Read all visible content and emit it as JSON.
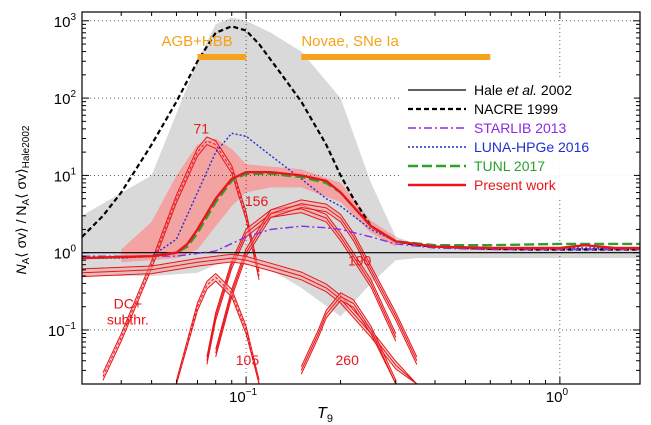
{
  "chart_data": {
    "type": "line",
    "title": "",
    "xlabel": "T",
    "xlabel_sub": "9",
    "ylabel_parts": [
      "N",
      "A",
      "⟨ σv⟩ / N",
      "A",
      "⟨ σv⟩",
      "Hale2002"
    ],
    "x_scale": "log",
    "y_scale": "log",
    "xlim": [
      0.03,
      1.8
    ],
    "ylim": [
      0.02,
      1300
    ],
    "grid": "dotted at decades",
    "legend_position": "right",
    "x_ticks": [
      {
        "value": 0.1,
        "base": "10",
        "exp": "−1"
      },
      {
        "value": 1,
        "base": "10",
        "exp": "0"
      }
    ],
    "y_ticks": [
      {
        "value": 0.1,
        "base": "10",
        "exp": "−1"
      },
      {
        "value": 1,
        "base": "10",
        "exp": "0"
      },
      {
        "value": 10,
        "base": "10",
        "exp": "1"
      },
      {
        "value": 100,
        "base": "10",
        "exp": "2"
      },
      {
        "value": 1000,
        "base": "10",
        "exp": "3"
      }
    ],
    "series": [
      {
        "name": "Hale et al. 2002",
        "name_pre": "Hale ",
        "name_ital": "et al.",
        "name_post": " 2002",
        "color": "#000000",
        "style": "solid",
        "x": [
          0.03,
          1.8
        ],
        "y": [
          1.0,
          1.0
        ]
      },
      {
        "name": "NACRE 1999",
        "color": "#000000",
        "style": "dash",
        "x": [
          0.03,
          0.035,
          0.04,
          0.05,
          0.06,
          0.07,
          0.08,
          0.09,
          0.1,
          0.11,
          0.13,
          0.15,
          0.18,
          0.2,
          0.22,
          0.25,
          0.3,
          0.35,
          0.4,
          0.5,
          0.6,
          0.8,
          1.0,
          1.3,
          1.8
        ],
        "y": [
          1.6,
          3,
          6,
          25,
          90,
          300,
          700,
          850,
          750,
          500,
          200,
          90,
          25,
          10,
          5,
          2.2,
          1.4,
          1.25,
          1.2,
          1.15,
          1.12,
          1.1,
          1.1,
          1.1,
          1.1
        ]
      },
      {
        "name": "STARLIB 2013",
        "color": "#8b2be2",
        "style": "dashdot",
        "x": [
          0.03,
          0.06,
          0.08,
          0.1,
          0.12,
          0.15,
          0.18,
          0.2,
          0.25,
          0.3,
          0.4,
          0.6,
          1.0,
          1.8
        ],
        "y": [
          0.9,
          0.9,
          1.05,
          1.6,
          2.0,
          2.2,
          2.1,
          2.0,
          1.6,
          1.3,
          1.15,
          1.1,
          1.1,
          1.1
        ]
      },
      {
        "name": "LUNA-HPGe 2016",
        "color": "#1f2fd6",
        "style": "dot",
        "x": [
          0.03,
          0.04,
          0.05,
          0.06,
          0.07,
          0.08,
          0.09,
          0.1,
          0.12,
          0.15,
          0.18,
          0.2,
          0.25,
          0.3,
          0.4,
          0.6,
          1.0,
          1.8
        ],
        "y": [
          0.85,
          0.85,
          0.9,
          1.5,
          6,
          20,
          35,
          32,
          18,
          9,
          5,
          4,
          2,
          1.4,
          1.2,
          1.15,
          1.15,
          1.15
        ]
      },
      {
        "name": "TUNL 2017",
        "color": "#2ca02c",
        "style": "longdash",
        "x": [
          0.03,
          0.05,
          0.06,
          0.065,
          0.07,
          0.08,
          0.09,
          0.1,
          0.12,
          0.15,
          0.18,
          0.2,
          0.25,
          0.3,
          0.4,
          0.6,
          1.0,
          1.8
        ],
        "y": [
          0.85,
          0.9,
          1.0,
          1.2,
          1.8,
          4.5,
          8.5,
          10.5,
          10.5,
          9.5,
          8,
          6,
          2.2,
          1.4,
          1.25,
          1.25,
          1.3,
          1.3
        ]
      },
      {
        "name": "Present work",
        "color": "#e8161b",
        "style": "solid",
        "x": [
          0.03,
          0.04,
          0.05,
          0.06,
          0.065,
          0.07,
          0.08,
          0.09,
          0.1,
          0.12,
          0.15,
          0.18,
          0.2,
          0.25,
          0.3,
          0.4,
          0.6,
          1.0,
          1.2,
          1.5,
          1.8
        ],
        "y": [
          0.85,
          0.88,
          0.9,
          1.0,
          1.3,
          2.0,
          5,
          9,
          11,
          11,
          10,
          8.5,
          6,
          2.2,
          1.4,
          1.2,
          1.15,
          1.15,
          1.25,
          1.15,
          1.15
        ]
      }
    ],
    "components": [
      {
        "label": "71",
        "x": [
          0.035,
          0.04,
          0.05,
          0.06,
          0.07,
          0.075,
          0.08,
          0.09,
          0.1,
          0.11
        ],
        "y": [
          0.025,
          0.08,
          0.7,
          5,
          20,
          28,
          25,
          12,
          3,
          0.5
        ]
      },
      {
        "label": "156",
        "x": [
          0.075,
          0.08,
          0.09,
          0.1,
          0.12,
          0.15,
          0.18,
          0.2,
          0.25,
          0.3
        ],
        "y": [
          0.04,
          0.15,
          0.7,
          1.8,
          3.2,
          3.7,
          2.8,
          1.6,
          0.4,
          0.08
        ]
      },
      {
        "label": "190",
        "x": [
          0.08,
          0.09,
          0.1,
          0.12,
          0.15,
          0.18,
          0.2,
          0.22,
          0.25,
          0.3,
          0.35
        ],
        "y": [
          0.05,
          0.3,
          1.0,
          3.2,
          4.3,
          3.8,
          2.8,
          1.6,
          0.6,
          0.15,
          0.04
        ]
      },
      {
        "label": "DC+ subthr.",
        "x": [
          0.03,
          0.05,
          0.07,
          0.09,
          0.1,
          0.12,
          0.15,
          0.18,
          0.2,
          0.25,
          0.3,
          0.35
        ],
        "y": [
          0.55,
          0.6,
          0.75,
          0.85,
          0.8,
          0.65,
          0.5,
          0.35,
          0.25,
          0.09,
          0.035,
          0.015
        ]
      },
      {
        "label": "105",
        "x": [
          0.06,
          0.07,
          0.075,
          0.08,
          0.09,
          0.1,
          0.11
        ],
        "y": [
          0.02,
          0.2,
          0.38,
          0.48,
          0.3,
          0.1,
          0.02
        ]
      },
      {
        "label": "260",
        "x": [
          0.15,
          0.17,
          0.18,
          0.2,
          0.22,
          0.25,
          0.3
        ],
        "y": [
          0.03,
          0.09,
          0.16,
          0.27,
          0.22,
          0.1,
          0.02
        ]
      }
    ],
    "bands": [
      {
        "color": "#d9d9d9",
        "x": [
          0.03,
          0.05,
          0.07,
          0.08,
          0.09,
          0.1,
          0.12,
          0.15,
          0.2,
          0.25,
          0.3,
          0.35,
          0.4,
          0.6,
          1.0,
          1.8
        ],
        "low": [
          0.5,
          0.5,
          0.55,
          0.7,
          0.8,
          0.8,
          0.6,
          0.35,
          0.15,
          0.4,
          0.8,
          0.85,
          0.85,
          0.85,
          0.85,
          0.85
        ],
        "high": [
          3,
          10,
          300,
          900,
          1100,
          1000,
          700,
          400,
          100,
          8,
          1.6,
          1.3,
          1.2,
          1.15,
          1.15,
          1.15
        ]
      },
      {
        "color": "#f4a3a3",
        "x": [
          0.04,
          0.05,
          0.06,
          0.07,
          0.08,
          0.09,
          0.1,
          0.12,
          0.15,
          0.2,
          0.25,
          0.3
        ],
        "low": [
          0.75,
          0.8,
          0.85,
          1.1,
          2.2,
          4,
          6,
          7,
          7,
          4.5,
          1.8,
          1.2
        ],
        "high": [
          1.1,
          2.5,
          10,
          25,
          30,
          22,
          14,
          13,
          12,
          8,
          2.6,
          1.6
        ]
      }
    ],
    "annotations": [
      {
        "text": "AGB+HBB",
        "range": [
          0.07,
          0.1
        ],
        "bar_y": 300,
        "color": "#f5a31a"
      },
      {
        "text": "Novae, SNe Ia",
        "range": [
          0.15,
          0.6
        ],
        "bar_y": 300,
        "color": "#f5a31a"
      }
    ]
  }
}
